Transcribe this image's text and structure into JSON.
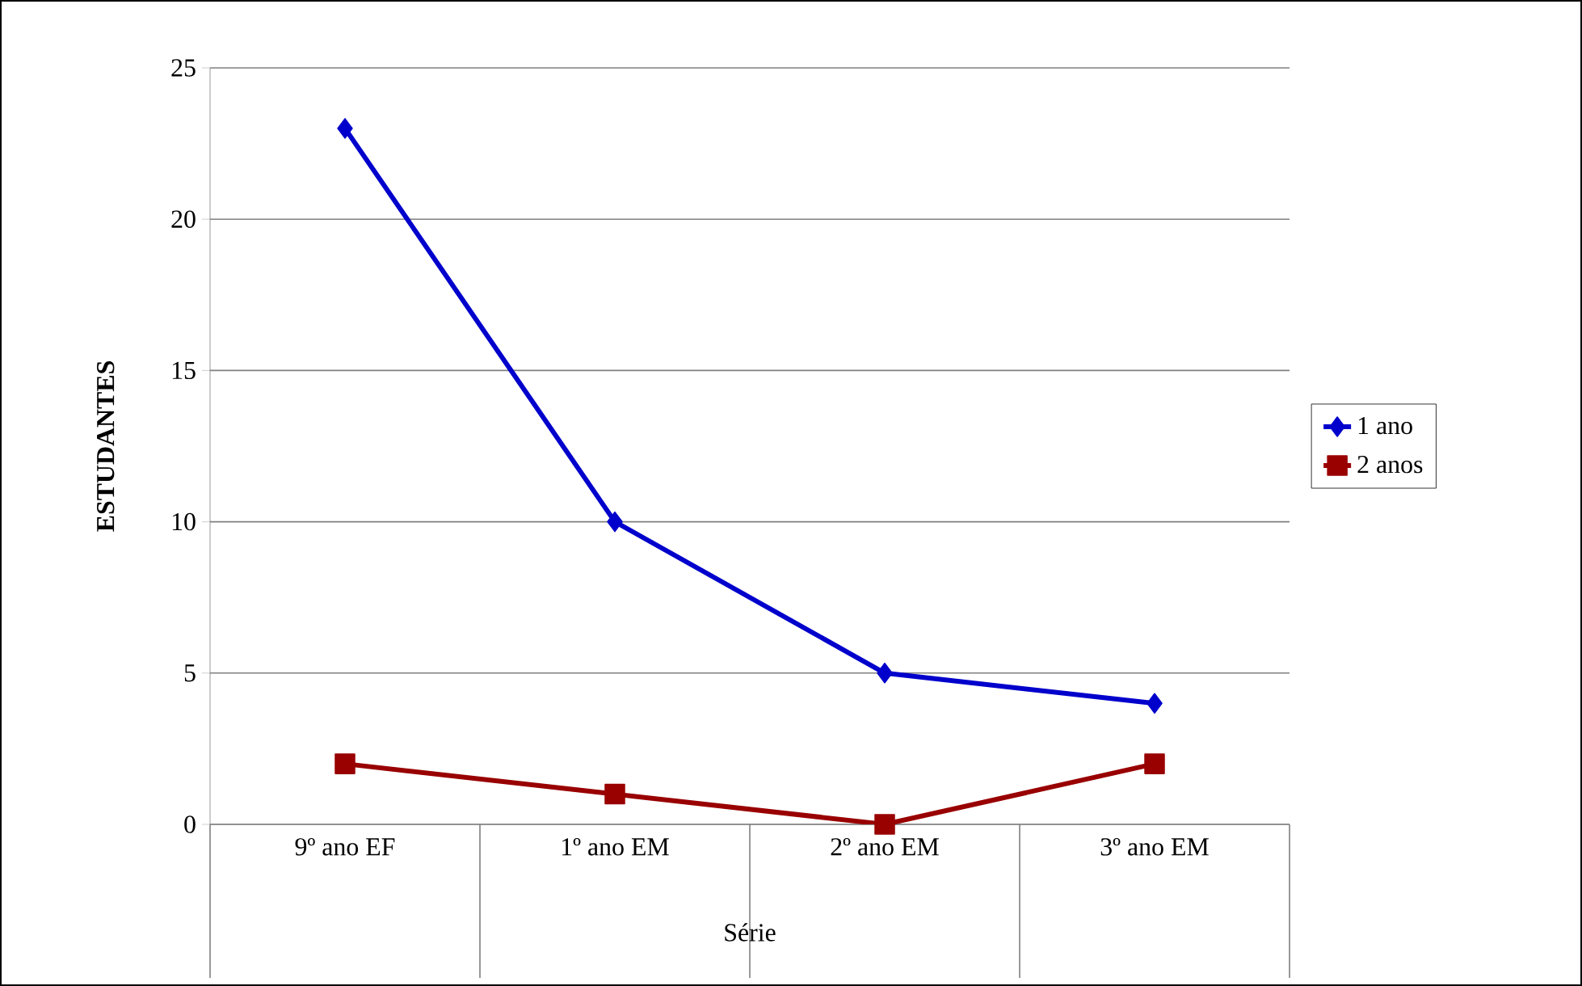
{
  "chart_data": {
    "type": "line",
    "xlabel": "Série",
    "ylabel": "ESTUDANTES",
    "categories": [
      "9º ano EF",
      "1º ano EM",
      "2º ano EM",
      "3º ano EM"
    ],
    "series": [
      {
        "name": "1 ano",
        "color": "#0000cc",
        "marker": "diamond",
        "values": [
          23,
          10,
          5,
          4
        ]
      },
      {
        "name": "2 anos",
        "color": "#990000",
        "marker": "square",
        "values": [
          2,
          1,
          0,
          2
        ]
      }
    ],
    "ylim": [
      0,
      25
    ],
    "yticks": [
      0,
      5,
      10,
      15,
      20,
      25
    ],
    "grid": "y",
    "legend": "right"
  }
}
